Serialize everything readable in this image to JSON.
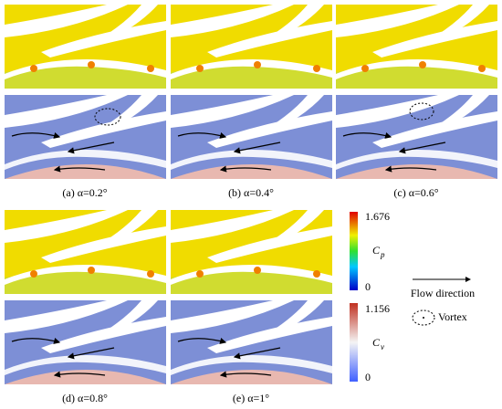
{
  "figure": {
    "captions": [
      "(a) α=0.2°",
      "(b) α=0.4°",
      "(c) α=0.6°",
      "(d) α=0.8°",
      "(e) α=1°"
    ],
    "colorbars": [
      {
        "symbol": "C",
        "subscript": "p",
        "max": 1.676,
        "min": 0
      },
      {
        "symbol": "C",
        "subscript": "v",
        "max": 1.156,
        "min": 0
      }
    ],
    "legend": {
      "arrow": "Flow direction",
      "vortex": "Vortex"
    }
  }
}
